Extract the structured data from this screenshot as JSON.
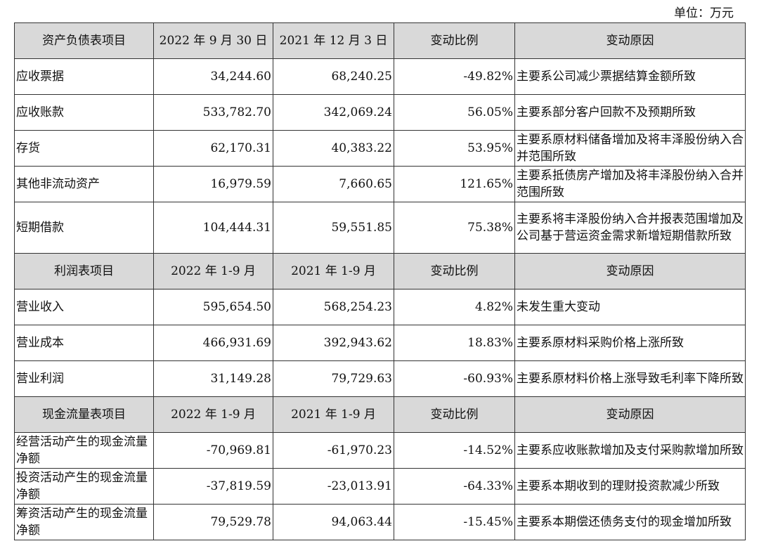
{
  "unit_label": "单位：万元",
  "sections": [
    {
      "header": [
        "资产负债表项目",
        "2022 年 9 月 30 日",
        "2021 年 12 月 3 日",
        "变动比例",
        "变动原因"
      ],
      "rows": [
        {
          "item": "应收票据",
          "v1": "34,244.60",
          "v2": "68,240.25",
          "ratio": "-49.82%",
          "reason": "主要系公司减少票据结算金额所致",
          "h": 1
        },
        {
          "item": "应收账款",
          "v1": "533,782.70",
          "v2": "342,069.24",
          "ratio": "56.05%",
          "reason": "主要系部分客户回款不及预期所致",
          "h": 1
        },
        {
          "item": "存货",
          "v1": "62,170.31",
          "v2": "40,383.22",
          "ratio": "53.95%",
          "reason": "主要系原材料储备增加及将丰泽股份纳入合并范围所致",
          "h": 2
        },
        {
          "item": "其他非流动资产",
          "v1": "16,979.59",
          "v2": "7,660.65",
          "ratio": "121.65%",
          "reason": "主要系抵债房产增加及将丰泽股份纳入合并范围所致",
          "h": 2
        },
        {
          "item": "短期借款",
          "v1": "104,444.31",
          "v2": "59,551.85",
          "ratio": "75.38%",
          "reason": "主要系将丰泽股份纳入合并报表范围增加及公司基于营运资金需求新增短期借款所致",
          "h": 3
        }
      ]
    },
    {
      "header": [
        "利润表项目",
        "2022 年 1-9 月",
        "2021 年 1-9 月",
        "变动比例",
        "变动原因"
      ],
      "rows": [
        {
          "item": "营业收入",
          "v1": "595,654.50",
          "v2": "568,254.23",
          "ratio": "4.82%",
          "reason": "未发生重大变动",
          "h": 1
        },
        {
          "item": "营业成本",
          "v1": "466,931.69",
          "v2": "392,943.62",
          "ratio": "18.83%",
          "reason": "主要系原材料采购价格上涨所致",
          "h": 1
        },
        {
          "item": "营业利润",
          "v1": "31,149.28",
          "v2": "79,729.63",
          "ratio": "-60.93%",
          "reason": "主要系原材料价格上涨导致毛利率下降所致",
          "h": 2
        }
      ]
    },
    {
      "header": [
        "现金流量表项目",
        "2022 年 1-9 月",
        "2021 年 1-9 月",
        "变动比例",
        "变动原因"
      ],
      "rows": [
        {
          "item": "经营活动产生的现金流量净额",
          "v1": "-70,969.81",
          "v2": "-61,970.23",
          "ratio": "-14.52%",
          "reason": "主要系应收账款增加及支付采购款增加所致",
          "h": 2
        },
        {
          "item": "投资活动产生的现金流量净额",
          "v1": "-37,819.59",
          "v2": "-23,013.91",
          "ratio": "-64.33%",
          "reason": "主要系本期收到的理财投资款减少所致",
          "h": 2
        },
        {
          "item": "筹资活动产生的现金流量净额",
          "v1": "79,529.78",
          "v2": "94,063.44",
          "ratio": "-15.45%",
          "reason": "主要系本期偿还债务支付的现金增加所致",
          "h": 2
        }
      ]
    }
  ]
}
